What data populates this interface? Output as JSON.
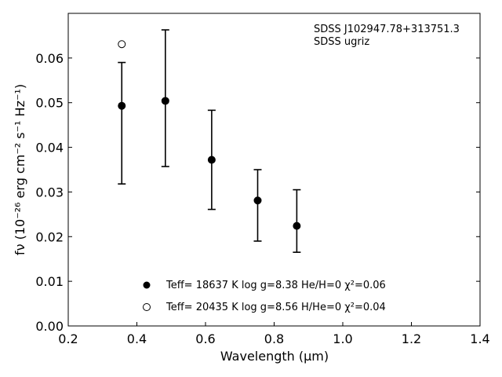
{
  "chart_data": {
    "type": "scatter",
    "title": "",
    "xlabel": "Wavelength (μm)",
    "ylabel": "fν (10⁻²⁶ erg cm⁻² s⁻¹ Hz⁻¹)",
    "xlim": [
      0.2,
      1.4
    ],
    "ylim": [
      0.0,
      0.07
    ],
    "xticks": [
      "0.2",
      "0.4",
      "0.6",
      "0.8",
      "1.0",
      "1.2",
      "1.4"
    ],
    "yticks": [
      "0.00",
      "0.01",
      "0.02",
      "0.03",
      "0.04",
      "0.05",
      "0.06"
    ],
    "grid": false,
    "legend_position": "lower-center",
    "annotations": [
      "SDSS J102947.78+313751.3",
      "SDSS ugriz"
    ],
    "series": [
      {
        "name": "Teff= 18637 K  log g=8.38  He/H=0  χ²=0.06",
        "marker": "filled-circle",
        "x": [
          0.356,
          0.483,
          0.618,
          0.752,
          0.866
        ],
        "y": [
          0.0493,
          0.0504,
          0.0372,
          0.0281,
          0.0224
        ]
      },
      {
        "name": "Teff= 20435 K  log g=8.56  H/He=0  χ²=0.04",
        "marker": "open-circle",
        "x": [
          0.356
        ],
        "y": [
          0.0631
        ]
      }
    ],
    "observations": {
      "name": "SDSS ugriz",
      "x": [
        0.356,
        0.483,
        0.618,
        0.752,
        0.866
      ],
      "y": [
        0.0454,
        0.051,
        0.0372,
        0.027,
        0.0235
      ],
      "yerr": [
        0.0136,
        0.0153,
        0.0111,
        0.008,
        0.007
      ]
    }
  },
  "colors": {
    "markers": "#000000",
    "axes": "#000000",
    "background": "#ffffff"
  }
}
